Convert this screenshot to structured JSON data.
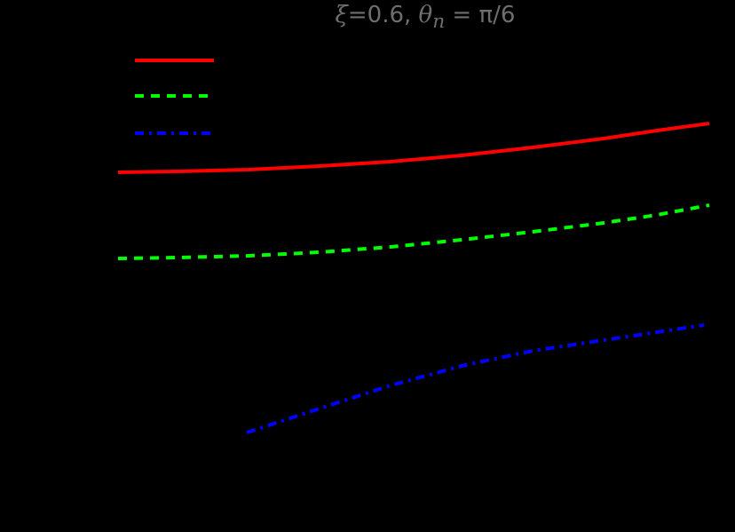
{
  "chart_data": {
    "type": "line",
    "title": "ξ=0.6, θ_n = π/6",
    "xlabel": "",
    "ylabel": "",
    "grid": false,
    "legend_position": "upper left",
    "note": "Axes, tick labels and legend labels render black on black background (not visible). Coordinates given in pixel space of the 828x599 image.",
    "series": [
      {
        "name": "",
        "color": "#ff0000",
        "style": "solid",
        "points": [
          [
            133,
            194
          ],
          [
            200,
            193
          ],
          [
            280,
            191
          ],
          [
            360,
            187
          ],
          [
            440,
            182
          ],
          [
            520,
            175
          ],
          [
            600,
            166
          ],
          [
            680,
            156
          ],
          [
            740,
            147
          ],
          [
            799,
            139
          ]
        ]
      },
      {
        "name": "",
        "color": "#00ff00",
        "style": "dashed",
        "points": [
          [
            133,
            291
          ],
          [
            200,
            290
          ],
          [
            280,
            288
          ],
          [
            360,
            284
          ],
          [
            440,
            278
          ],
          [
            520,
            270
          ],
          [
            600,
            261
          ],
          [
            680,
            251
          ],
          [
            740,
            242
          ],
          [
            799,
            231
          ]
        ]
      },
      {
        "name": "",
        "color": "#0000ff",
        "style": "dashdot",
        "points": [
          [
            278,
            487
          ],
          [
            360,
            460
          ],
          [
            440,
            434
          ],
          [
            520,
            412
          ],
          [
            600,
            395
          ],
          [
            680,
            383
          ],
          [
            740,
            374
          ],
          [
            793,
            366
          ]
        ]
      }
    ],
    "legend": [
      {
        "color": "#ff0000",
        "style": "solid",
        "y": 68
      },
      {
        "color": "#00ff00",
        "style": "dashed",
        "y": 108
      },
      {
        "color": "#0000ff",
        "style": "dashdot",
        "y": 150
      }
    ]
  },
  "title_parts": {
    "xi": "ξ",
    "xi_val": "=0.6, ",
    "theta": "θ",
    "sub": "n",
    "rest": " = π/6"
  }
}
